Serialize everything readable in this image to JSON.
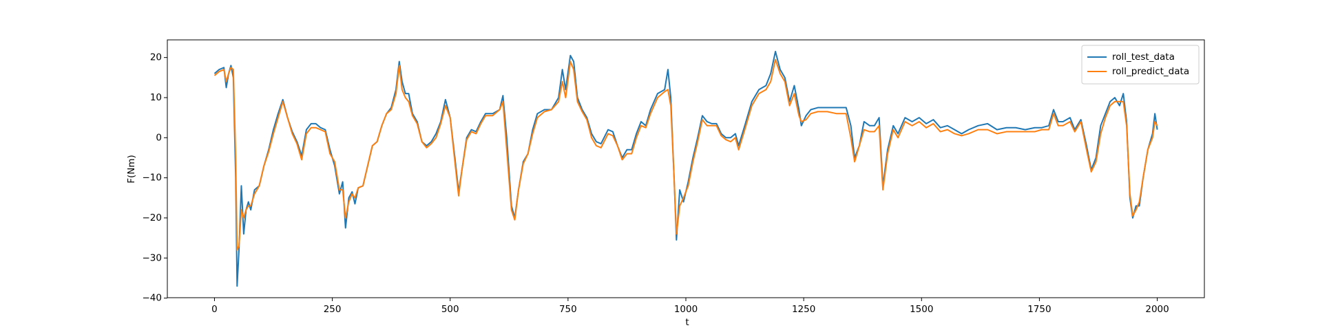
{
  "chart_data": {
    "type": "line",
    "xlabel": "t",
    "ylabel": "F(Nm)",
    "x": [
      0,
      10,
      20,
      25,
      30,
      35,
      40,
      45,
      48,
      52,
      57,
      62,
      67,
      72,
      77,
      85,
      95,
      105,
      115,
      125,
      135,
      145,
      155,
      165,
      175,
      185,
      195,
      205,
      215,
      225,
      235,
      245,
      255,
      265,
      272,
      278,
      285,
      292,
      298,
      305,
      315,
      325,
      335,
      345,
      355,
      365,
      375,
      385,
      392,
      398,
      405,
      412,
      420,
      430,
      440,
      450,
      460,
      470,
      480,
      490,
      500,
      510,
      518,
      525,
      535,
      545,
      555,
      565,
      575,
      590,
      605,
      612,
      620,
      630,
      637,
      645,
      655,
      665,
      675,
      685,
      700,
      715,
      730,
      738,
      745,
      755,
      762,
      770,
      780,
      790,
      800,
      810,
      820,
      835,
      845,
      855,
      865,
      875,
      885,
      895,
      905,
      915,
      925,
      940,
      955,
      962,
      968,
      975,
      980,
      987,
      995,
      1005,
      1015,
      1025,
      1035,
      1045,
      1055,
      1065,
      1075,
      1085,
      1095,
      1105,
      1112,
      1125,
      1140,
      1155,
      1170,
      1180,
      1190,
      1200,
      1210,
      1220,
      1230,
      1240,
      1245,
      1255,
      1265,
      1280,
      1300,
      1320,
      1340,
      1350,
      1358,
      1368,
      1378,
      1390,
      1400,
      1410,
      1418,
      1428,
      1440,
      1450,
      1465,
      1480,
      1495,
      1510,
      1525,
      1540,
      1555,
      1570,
      1585,
      1600,
      1620,
      1640,
      1660,
      1680,
      1700,
      1720,
      1740,
      1755,
      1770,
      1780,
      1790,
      1800,
      1815,
      1825,
      1838,
      1850,
      1860,
      1870,
      1880,
      1890,
      1900,
      1910,
      1920,
      1928,
      1935,
      1942,
      1948,
      1955,
      1962,
      1970,
      1980,
      1990,
      1995,
      2000
    ],
    "series": [
      {
        "name": "roll_test_data",
        "color": "#1f77b4",
        "values": [
          16,
          17,
          17.5,
          12.5,
          16,
          18,
          15,
          -10,
          -37,
          -28,
          -12,
          -24,
          -18,
          -16,
          -18,
          -13,
          -12,
          -7,
          -3,
          2,
          6,
          9.5,
          5,
          1.5,
          -1,
          -4.5,
          2,
          3.5,
          3.5,
          2.5,
          2,
          -3,
          -7,
          -14,
          -11,
          -22.5,
          -15,
          -13.5,
          -16.5,
          -12.5,
          -12,
          -7,
          -2,
          -1,
          3,
          6,
          7.5,
          12,
          19,
          14,
          11,
          11,
          6,
          4,
          -1,
          -2,
          -1,
          1,
          4,
          9.5,
          5,
          -5,
          -13.5,
          -8,
          0,
          2,
          1.5,
          4,
          6,
          6,
          7,
          10.5,
          0,
          -17,
          -20,
          -13,
          -6,
          -4,
          2,
          6,
          7,
          7,
          10,
          17,
          12,
          20.5,
          19,
          10,
          7,
          5,
          1,
          -1,
          -1.5,
          2,
          1.5,
          -2,
          -5,
          -3,
          -3,
          1,
          4,
          3,
          7,
          11,
          12,
          17,
          10,
          -10,
          -25.5,
          -13,
          -16,
          -11,
          -5,
          0,
          5.5,
          4,
          3.5,
          3.5,
          1,
          0,
          0,
          1,
          -2,
          3,
          9,
          12,
          13,
          16,
          21.5,
          17,
          15,
          9,
          13,
          7,
          3,
          5.5,
          7,
          7.5,
          7.5,
          7.5,
          7.5,
          3,
          -5,
          -2,
          4,
          3,
          3,
          5,
          -12,
          -3,
          3,
          1,
          5,
          4,
          5,
          3.5,
          4.5,
          2.5,
          3,
          2,
          1,
          2,
          3,
          3.5,
          2,
          2.5,
          2.5,
          2,
          2.5,
          2.5,
          3,
          7,
          4,
          4,
          5,
          2,
          4.5,
          -2,
          -8,
          -5,
          3,
          6,
          9,
          10,
          8,
          11,
          4,
          -15,
          -20,
          -17,
          -17,
          -10,
          -3,
          1,
          6,
          2
        ]
      },
      {
        "name": "roll_predict_data",
        "color": "#ff7f0e",
        "values": [
          15.5,
          16.5,
          17,
          14,
          16,
          17.5,
          17,
          -5,
          -28,
          -27,
          -18,
          -20,
          -18,
          -17,
          -17,
          -14,
          -12,
          -7,
          -3.5,
          1,
          5,
          9,
          5,
          1,
          -1.5,
          -5.5,
          1,
          2.5,
          2.5,
          2,
          1.5,
          -4,
          -6,
          -13,
          -13,
          -20,
          -16,
          -14,
          -15,
          -12.5,
          -12,
          -7,
          -2,
          -1,
          3,
          6,
          7,
          11,
          18,
          12,
          10,
          9,
          5.5,
          3.5,
          -1,
          -2.5,
          -1.5,
          0,
          3.5,
          8,
          5,
          -6,
          -14.5,
          -8,
          -0.5,
          1.5,
          1,
          3.5,
          5.5,
          5.5,
          7,
          9,
          -3,
          -18,
          -20.5,
          -13,
          -6.5,
          -4,
          1,
          5,
          6.5,
          7,
          9,
          14,
          10,
          19,
          17,
          9,
          6.5,
          4.5,
          0,
          -2,
          -2.5,
          1,
          0.5,
          -2,
          -5.5,
          -4,
          -4,
          0,
          3,
          2.5,
          6,
          10,
          11.5,
          12,
          8,
          -10,
          -24,
          -17,
          -15,
          -12,
          -6,
          -1,
          4.5,
          3,
          3,
          3,
          0.5,
          -0.5,
          -1,
          0,
          -3,
          2,
          8,
          11,
          12,
          14,
          19.5,
          16,
          14,
          8,
          11,
          5.5,
          4,
          4.5,
          6,
          6.5,
          6.5,
          6,
          6,
          0,
          -6,
          -2,
          2,
          1.5,
          1.5,
          3,
          -13,
          -4,
          2,
          0,
          4,
          3,
          4,
          2.5,
          3.5,
          1.5,
          2,
          1,
          0.5,
          1,
          2,
          2,
          1,
          1.5,
          1.5,
          1.5,
          1.5,
          2,
          2,
          6,
          3,
          3,
          4,
          1.5,
          4,
          -3,
          -8.5,
          -6,
          1,
          5,
          8,
          9,
          9,
          9,
          3,
          -14,
          -19.5,
          -18,
          -16,
          -10,
          -3,
          0,
          4,
          3
        ]
      }
    ],
    "xlim": [
      -100,
      2100
    ],
    "xticks": [
      0,
      250,
      500,
      750,
      1000,
      1250,
      1500,
      1750,
      2000
    ],
    "ylim": [
      -39.9,
      24.4
    ],
    "yticks": [
      {
        "value": -40,
        "label": "−40"
      },
      {
        "value": -30,
        "label": "−30"
      },
      {
        "value": -20,
        "label": "−20"
      },
      {
        "value": -10,
        "label": "−10"
      },
      0,
      10,
      20
    ],
    "legend": "upper right"
  }
}
